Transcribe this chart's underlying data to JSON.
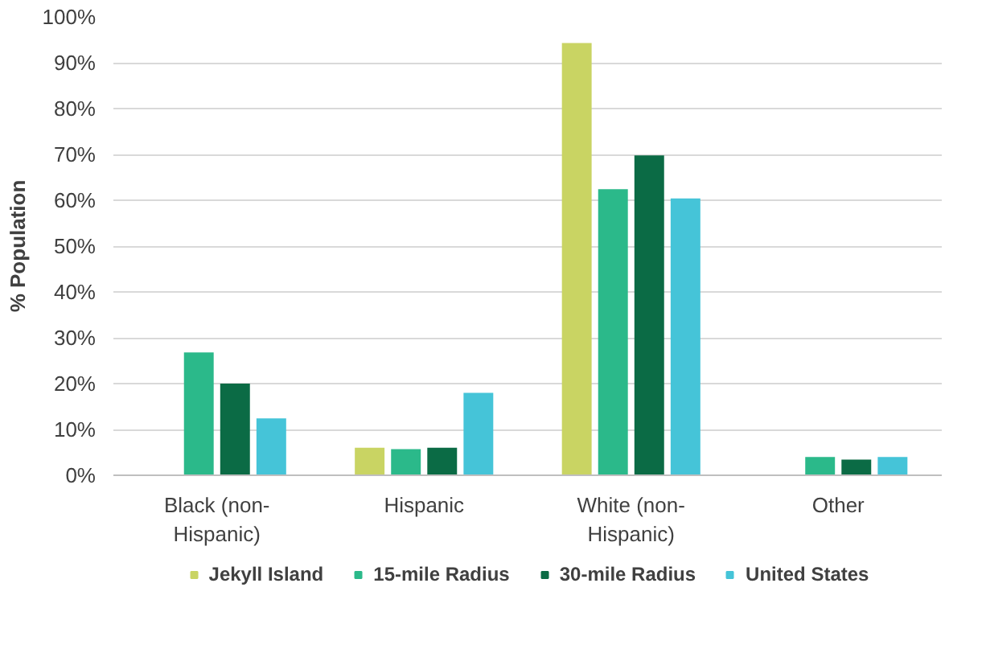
{
  "chart_data": {
    "type": "bar",
    "ylabel": "% Population",
    "categories": [
      "Black (non-Hispanic)",
      "Hispanic",
      "White (non-Hispanic)",
      "Other"
    ],
    "series": [
      {
        "name": "Jekyll Island",
        "color": "#c9d463",
        "values": [
          0,
          6,
          94.3,
          0
        ]
      },
      {
        "name": "15-mile Radius",
        "color": "#2bb98a",
        "values": [
          26.8,
          5.7,
          62.4,
          4
        ]
      },
      {
        "name": "30-mile Radius",
        "color": "#0b6b45",
        "values": [
          20,
          6,
          69.8,
          3.4
        ]
      },
      {
        "name": "United States",
        "color": "#45c4d8",
        "values": [
          12.4,
          18,
          60.4,
          4
        ]
      }
    ],
    "ylim": [
      0,
      100
    ],
    "yticks": [
      {
        "value": 0,
        "label": "0%"
      },
      {
        "value": 10,
        "label": "10%"
      },
      {
        "value": 20,
        "label": "20%"
      },
      {
        "value": 30,
        "label": "30%"
      },
      {
        "value": 40,
        "label": "40%"
      },
      {
        "value": 50,
        "label": "50%"
      },
      {
        "value": 60,
        "label": "60%"
      },
      {
        "value": 70,
        "label": "70%"
      },
      {
        "value": 80,
        "label": "80%"
      },
      {
        "value": 90,
        "label": "90%"
      },
      {
        "value": 100,
        "label": "100%"
      }
    ],
    "grid": "y",
    "legend": "bottom"
  }
}
